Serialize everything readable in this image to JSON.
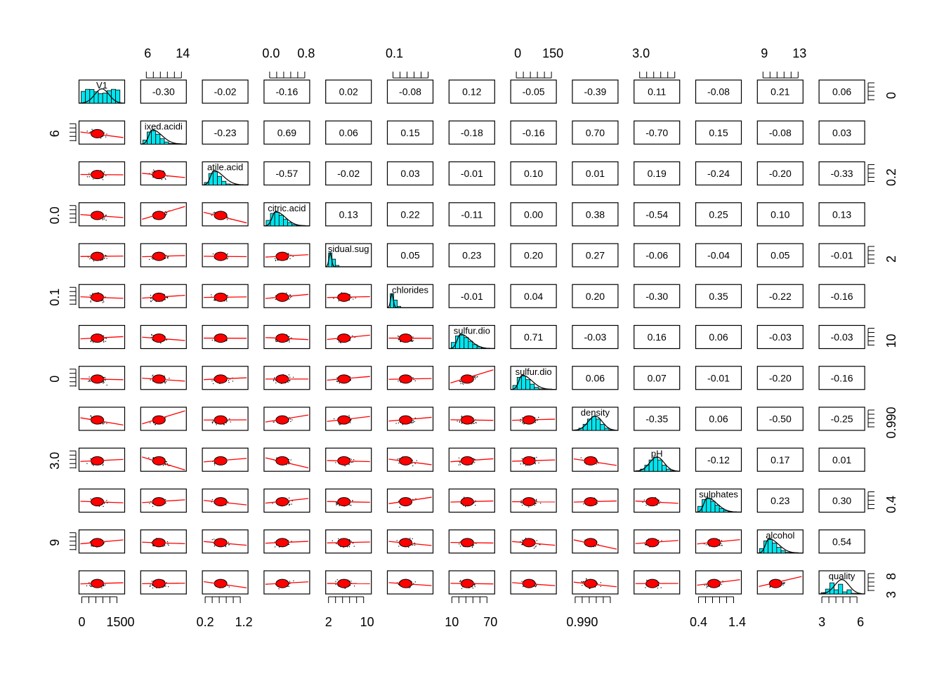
{
  "chart_data": {
    "type": "scatter-matrix",
    "variables": [
      "V1",
      "fixed.acidity",
      "volatile.acidity",
      "citric.acid",
      "residual.sugar",
      "chlorides",
      "free.sulfur.dioxide",
      "total.sulfur.dioxide",
      "density",
      "pH",
      "sulphates",
      "alcohol",
      "quality"
    ],
    "correlations": [
      [
        null,
        -0.3,
        -0.02,
        -0.16,
        0.02,
        -0.08,
        0.12,
        -0.05,
        -0.39,
        0.11,
        -0.08,
        0.21,
        0.06
      ],
      [
        null,
        null,
        -0.23,
        0.69,
        0.06,
        0.15,
        -0.18,
        -0.16,
        0.7,
        -0.7,
        0.15,
        -0.08,
        0.03
      ],
      [
        null,
        null,
        null,
        -0.57,
        -0.02,
        0.03,
        -0.01,
        0.1,
        0.01,
        0.19,
        -0.24,
        -0.2,
        -0.33
      ],
      [
        null,
        null,
        null,
        null,
        0.13,
        0.22,
        -0.11,
        0.0,
        0.38,
        -0.54,
        0.25,
        0.1,
        0.13
      ],
      [
        null,
        null,
        null,
        null,
        null,
        0.05,
        0.23,
        0.2,
        0.27,
        -0.06,
        -0.04,
        0.05,
        -0.01
      ],
      [
        null,
        null,
        null,
        null,
        null,
        null,
        -0.01,
        0.04,
        0.2,
        -0.3,
        0.35,
        -0.22,
        -0.16
      ],
      [
        null,
        null,
        null,
        null,
        null,
        null,
        null,
        0.71,
        -0.03,
        0.16,
        0.06,
        -0.03,
        -0.03
      ],
      [
        null,
        null,
        null,
        null,
        null,
        null,
        null,
        null,
        0.06,
        0.07,
        -0.01,
        -0.2,
        -0.16
      ],
      [
        null,
        null,
        null,
        null,
        null,
        null,
        null,
        null,
        null,
        -0.35,
        0.06,
        -0.5,
        -0.25
      ],
      [
        null,
        null,
        null,
        null,
        null,
        null,
        null,
        null,
        null,
        null,
        -0.12,
        0.17,
        0.01
      ],
      [
        null,
        null,
        null,
        null,
        null,
        null,
        null,
        null,
        null,
        null,
        null,
        0.23,
        0.3
      ],
      [
        null,
        null,
        null,
        null,
        null,
        null,
        null,
        null,
        null,
        null,
        null,
        null,
        0.54
      ],
      [
        null,
        null,
        null,
        null,
        null,
        null,
        null,
        null,
        null,
        null,
        null,
        null,
        null
      ]
    ],
    "diag_labels": [
      "V1",
      "ixed.acidi",
      "atile.acid",
      "citric.acid",
      "sidual.sug",
      "chlorides",
      "sulfur.dio",
      "sulfur.dio",
      "density",
      "pH",
      "sulphates",
      "alcohol",
      "quality"
    ],
    "top_axis_labels": [
      [
        "6",
        "14"
      ],
      [
        "0.0",
        "0.8"
      ],
      [
        "0.1"
      ],
      [
        "0",
        "150"
      ],
      [
        "3.0"
      ],
      [
        "9",
        "13"
      ]
    ],
    "bottom_axis_labels": [
      [
        "0",
        "1500"
      ],
      [
        "0.2",
        "1.2"
      ],
      [
        "2",
        "10"
      ],
      [
        "10",
        "70"
      ],
      [
        "0.990"
      ],
      [
        "0.4",
        "1.4"
      ],
      [
        "3",
        "6"
      ]
    ],
    "left_axis_labels": [
      "6",
      "0.0",
      "0.1",
      "0",
      "3.0",
      "9"
    ],
    "right_axis_labels": [
      "0",
      "0.2",
      "2",
      "10",
      "0.990",
      "0.4",
      [
        "8",
        "3"
      ]
    ],
    "colors": {
      "histogram": "#00e5ee",
      "loess": "#ff0000",
      "ellipse_fill": "#ff0000",
      "points": "#000000",
      "box": "#000000"
    }
  }
}
